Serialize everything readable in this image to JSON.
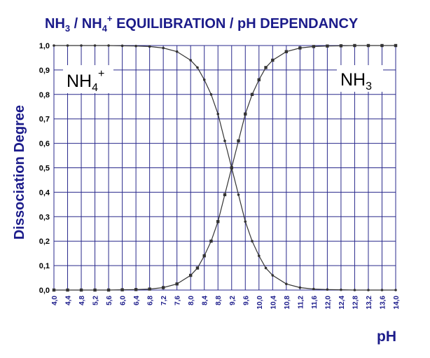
{
  "chart_data": {
    "type": "line",
    "title_parts": {
      "p1": "NH",
      "p2": "3",
      "p3": " / NH",
      "p4": "4",
      "p5": "+",
      "p6": " EQUILIBRATION  /  pH DEPENDANCY"
    },
    "ylabel": "Dissociation Degree",
    "xlabel": "pH",
    "xlim": [
      4.0,
      14.0
    ],
    "ylim": [
      0.0,
      1.0
    ],
    "x_ticks": [
      "4,0",
      "4,4",
      "4,8",
      "5,2",
      "5,6",
      "6,0",
      "6,4",
      "6,8",
      "7,2",
      "7,6",
      "8,0",
      "8,4",
      "8,8",
      "9,2",
      "9,6",
      "10,0",
      "10,4",
      "10,8",
      "11,2",
      "11,6",
      "12,0",
      "12,4",
      "12,8",
      "13,2",
      "13,6",
      "14,0"
    ],
    "y_ticks": [
      "0,0",
      "0,1",
      "0,2",
      "0,3",
      "0,4",
      "0,5",
      "0,6",
      "0,7",
      "0,8",
      "0,9",
      "1,0"
    ],
    "grid": true,
    "series": [
      {
        "name": "NH4+",
        "label_parts": {
          "base": "NH",
          "sub": "4",
          "sup": "+"
        },
        "color": "#333333",
        "marker": "small-dot",
        "x": [
          4.0,
          4.4,
          4.8,
          5.2,
          5.6,
          6.0,
          6.4,
          6.8,
          7.2,
          7.6,
          8.0,
          8.2,
          8.4,
          8.6,
          8.8,
          9.0,
          9.2,
          9.4,
          9.6,
          9.8,
          10.0,
          10.2,
          10.4,
          10.8,
          11.2,
          11.6,
          12.0,
          12.4,
          12.8,
          13.2,
          13.6,
          14.0
        ],
        "y": [
          1.0,
          1.0,
          1.0,
          1.0,
          1.0,
          0.999,
          0.998,
          0.996,
          0.99,
          0.975,
          0.94,
          0.91,
          0.86,
          0.8,
          0.72,
          0.61,
          0.5,
          0.39,
          0.28,
          0.2,
          0.14,
          0.09,
          0.06,
          0.025,
          0.01,
          0.004,
          0.002,
          0.001,
          0.0,
          0.0,
          0.0,
          0.0
        ]
      },
      {
        "name": "NH3",
        "label_parts": {
          "base": "NH",
          "sub": "3"
        },
        "color": "#333333",
        "marker": "square",
        "x": [
          4.0,
          4.4,
          4.8,
          5.2,
          5.6,
          6.0,
          6.4,
          6.8,
          7.2,
          7.6,
          8.0,
          8.2,
          8.4,
          8.6,
          8.8,
          9.0,
          9.2,
          9.4,
          9.6,
          9.8,
          10.0,
          10.2,
          10.4,
          10.8,
          11.2,
          11.6,
          12.0,
          12.4,
          12.8,
          13.2,
          13.6,
          14.0
        ],
        "y": [
          0.0,
          0.0,
          0.0,
          0.0,
          0.0,
          0.001,
          0.002,
          0.004,
          0.01,
          0.025,
          0.06,
          0.09,
          0.14,
          0.2,
          0.28,
          0.39,
          0.5,
          0.61,
          0.72,
          0.8,
          0.86,
          0.91,
          0.94,
          0.975,
          0.99,
          0.996,
          0.998,
          0.999,
          1.0,
          1.0,
          1.0,
          1.0
        ]
      }
    ],
    "colors": {
      "title": "#1b1b8a",
      "grid": "#2a2a8c",
      "curve": "#333333"
    }
  }
}
